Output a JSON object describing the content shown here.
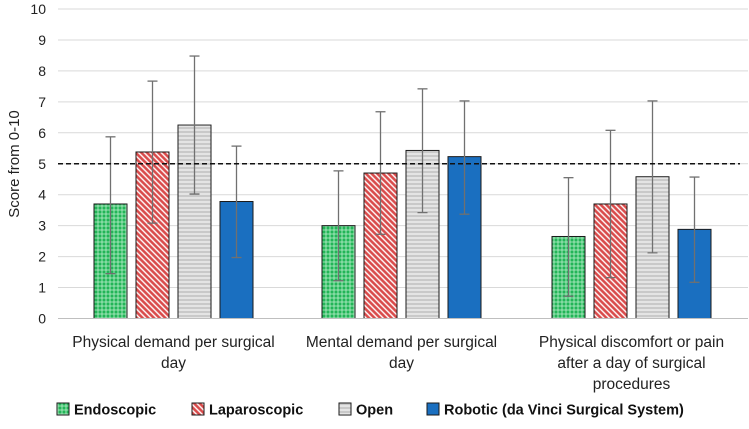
{
  "chart_data": {
    "type": "bar",
    "title": "",
    "xlabel": "",
    "ylabel": "Score from 0-10",
    "ylim": [
      0,
      10
    ],
    "yticks": [
      "0",
      "1",
      "2",
      "3",
      "4",
      "5",
      "6",
      "7",
      "8",
      "9",
      "10"
    ],
    "grid": true,
    "reference_line": 5,
    "categories": [
      [
        "Physical demand per surgical",
        "day"
      ],
      [
        "Mental demand per surgical",
        "day"
      ],
      [
        "Physical discomfort or pain",
        "after a day of surgical",
        "procedures"
      ]
    ],
    "series": [
      {
        "name": "Endoscopic",
        "color": "#22b557",
        "values": [
          3.7,
          3.0,
          2.65
        ],
        "error_low": [
          1.45,
          1.22,
          0.72
        ],
        "error_high": [
          5.87,
          4.77,
          4.55
        ]
      },
      {
        "name": "Laparoscopic",
        "color": "#e06666",
        "values": [
          5.38,
          4.7,
          3.7
        ],
        "error_low": [
          3.08,
          2.72,
          1.32
        ],
        "error_high": [
          7.67,
          6.68,
          6.08
        ]
      },
      {
        "name": "Open",
        "color": "#c8c8c8",
        "values": [
          6.25,
          5.43,
          4.58
        ],
        "error_low": [
          4.02,
          3.42,
          2.12
        ],
        "error_high": [
          8.48,
          7.42,
          7.03
        ]
      },
      {
        "name": "Robotic (da Vinci Surgical System)",
        "color": "#1a6fc0",
        "values": [
          3.78,
          5.23,
          2.88
        ],
        "error_low": [
          1.97,
          3.37,
          1.17
        ],
        "error_high": [
          5.57,
          7.03,
          4.57
        ]
      }
    ],
    "legend_position": "bottom"
  }
}
